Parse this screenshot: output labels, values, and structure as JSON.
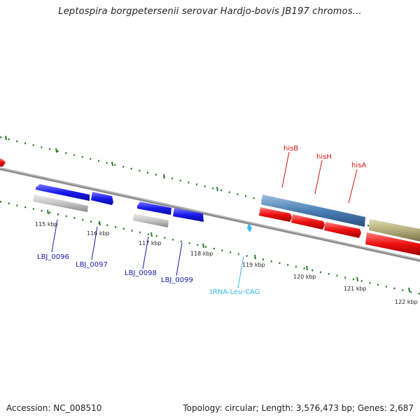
{
  "title": "Leptospira borgpetersenii serovar Hardjo-bovis JB197 chromos...",
  "ticks": [
    "115 kbp",
    "116 kbp",
    "117 kbp",
    "118 kbp",
    "119 kbp",
    "120 kbp",
    "121 kbp",
    "122 kbp"
  ],
  "genes_top": [
    "hisB",
    "hisH",
    "hisA"
  ],
  "genes_bottom": [
    "LBJ_0096",
    "LBJ_0097",
    "LBJ_0098",
    "LBJ_0099",
    "tRNA-Leu-CAG"
  ],
  "colors": {
    "cds_blue": "#1a1aee",
    "cds_red": "#ee1111",
    "gene_gray": "#bdbdbd",
    "steel_blue": "#4a7fb3",
    "olive": "#b3ad7a",
    "trna_cyan": "#33bbee",
    "tick_green": "#2a7a2a",
    "label_navy": "#1a1aa8",
    "label_red": "#cc1111"
  },
  "footer": {
    "accession": "Accession: NC_008510",
    "summary": "Topology: circular; Length: 3,576,473 bp; Genes: 2,687"
  }
}
